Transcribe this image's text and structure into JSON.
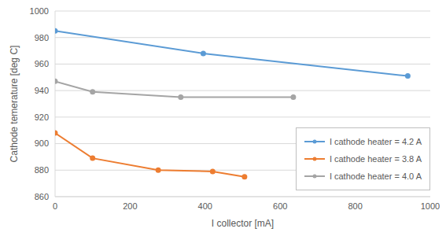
{
  "chart_data": {
    "type": "line",
    "x_label": "I collector [mA]",
    "y_label": "Cathode temerature [deg C]",
    "xlim": [
      0,
      1000
    ],
    "xticks": [
      0,
      200,
      400,
      600,
      800,
      1000
    ],
    "ylim": [
      860,
      1000
    ],
    "yticks": [
      860,
      880,
      900,
      920,
      940,
      960,
      980,
      1000
    ],
    "grid": "y",
    "legend": "lower right",
    "marker": "circle",
    "series": [
      {
        "name": "I cathode heater = 4.2 A",
        "color": "#5b9bd5",
        "x": [
          0,
          395,
          940
        ],
        "values": [
          985,
          968,
          951
        ]
      },
      {
        "name": "I cathode heater = 3.8 A",
        "color": "#ed7d31",
        "x": [
          0,
          100,
          275,
          420,
          505
        ],
        "values": [
          908,
          889,
          880,
          879,
          875
        ]
      },
      {
        "name": "I cathode heater = 4.0 A",
        "color": "#a5a5a5",
        "x": [
          0,
          100,
          335,
          635
        ],
        "values": [
          947,
          939,
          935,
          935
        ]
      }
    ]
  }
}
